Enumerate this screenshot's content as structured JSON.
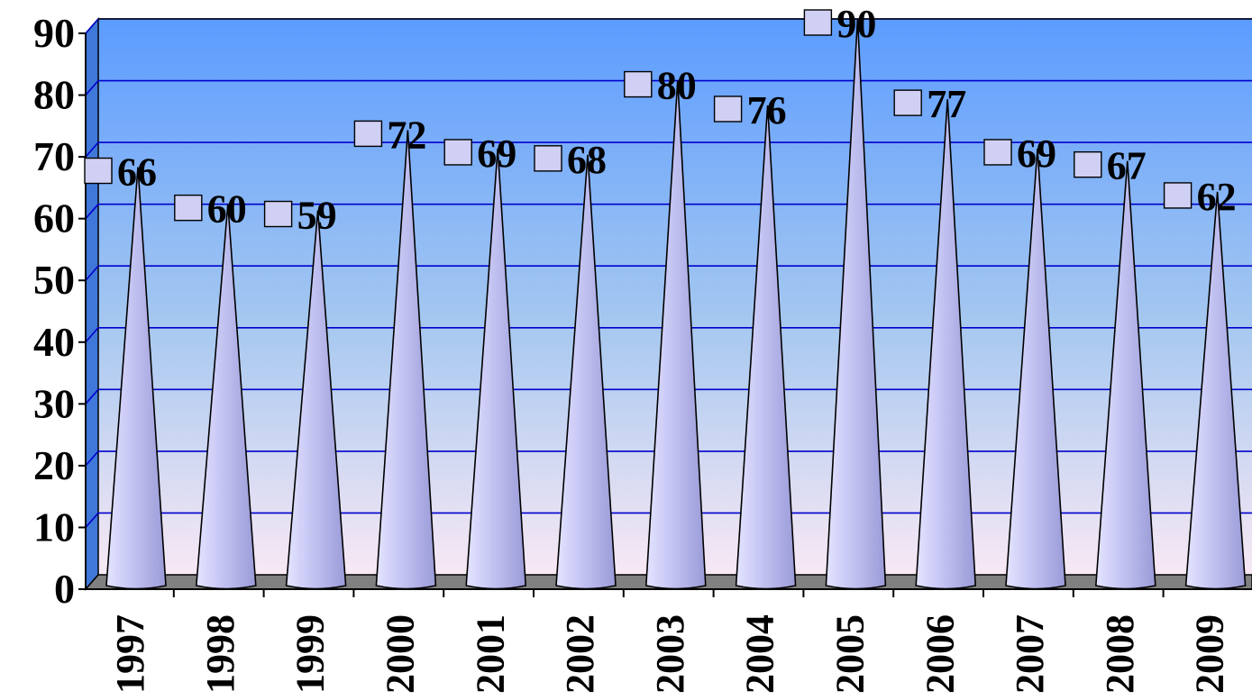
{
  "chart_data": {
    "type": "bar",
    "bar_shape": "cone",
    "categories": [
      "1997",
      "1998",
      "1999",
      "2000",
      "2001",
      "2002",
      "2003",
      "2004",
      "2005",
      "2006",
      "2007",
      "2008",
      "2009"
    ],
    "values": [
      66,
      60,
      59,
      72,
      69,
      68,
      80,
      76,
      90,
      77,
      69,
      67,
      62
    ],
    "data_labels": [
      "66",
      "60",
      "59",
      "72",
      "69",
      "68",
      "80",
      "76",
      "90",
      "77",
      "69",
      "67",
      "62"
    ],
    "title": "",
    "xlabel": "",
    "ylabel": "",
    "ylim": [
      0,
      90
    ],
    "yticks": [
      "0",
      "10",
      "20",
      "30",
      "40",
      "50",
      "60",
      "70",
      "80",
      "90"
    ],
    "grid": true,
    "legend": "none",
    "colors": {
      "bar": "#c8c8f4",
      "bar_stroke": "#000000",
      "plot_top": "#5c9cff",
      "plot_bottom": "#f8e8f4",
      "gridline": "#0000cc",
      "floor": "#808080",
      "marker": "#d0d0f4"
    }
  }
}
